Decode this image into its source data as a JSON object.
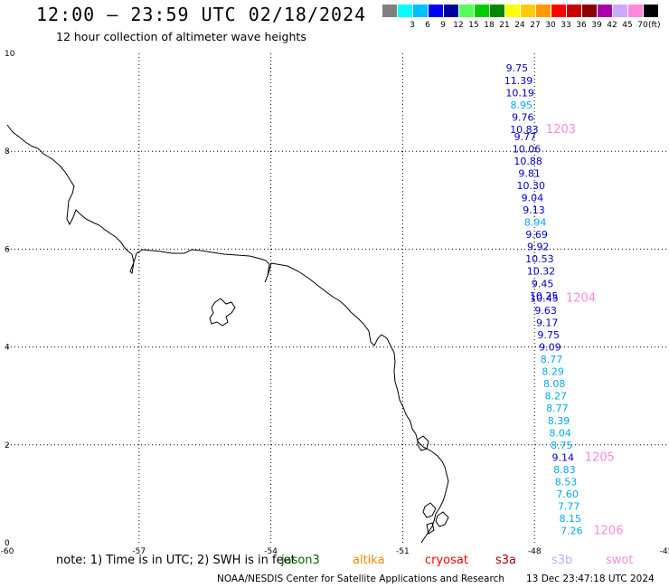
{
  "header": {
    "title": "12:00 – 23:59 UTC 02/18/2024",
    "subtitle": "12 hour collection of altimeter wave heights"
  },
  "colorbar": {
    "unit": "(ft)",
    "items": [
      {
        "label": "",
        "color": "#808080"
      },
      {
        "label": "3",
        "color": "#00ffff"
      },
      {
        "label": "6",
        "color": "#00bfff"
      },
      {
        "label": "9",
        "color": "#0000ff"
      },
      {
        "label": "12",
        "color": "#00009f"
      },
      {
        "label": "15",
        "color": "#55ff55"
      },
      {
        "label": "18",
        "color": "#00cc00"
      },
      {
        "label": "21",
        "color": "#008800"
      },
      {
        "label": "24",
        "color": "#ffff00"
      },
      {
        "label": "27",
        "color": "#ffcc00"
      },
      {
        "label": "30",
        "color": "#ff9900"
      },
      {
        "label": "33",
        "color": "#ff0000"
      },
      {
        "label": "36",
        "color": "#cc0000"
      },
      {
        "label": "39",
        "color": "#880000"
      },
      {
        "label": "42",
        "color": "#aa00aa"
      },
      {
        "label": "45",
        "color": "#ccaaff"
      },
      {
        "label": "70",
        "color": "#ff88dd"
      },
      {
        "label": "",
        "color": "#000000"
      }
    ]
  },
  "map": {
    "lon_range": [
      -60,
      -45
    ],
    "lat_range": [
      0,
      10
    ],
    "lon_ticks": [
      "-60",
      "-57",
      "-54",
      "-51",
      "-48",
      "-45"
    ],
    "lat_ticks": [
      "10",
      "8",
      "6",
      "4",
      "2",
      "0"
    ],
    "observations": [
      {
        "lat": 9.7,
        "value": "9.75",
        "color": "#0000cc"
      },
      {
        "lat": 9.45,
        "value": "11.39",
        "color": "#0000cc"
      },
      {
        "lat": 9.2,
        "value": "10.19",
        "color": "#0000cc"
      },
      {
        "lat": 8.95,
        "value": "8.95",
        "color": "#00aaee"
      },
      {
        "lat": 8.7,
        "value": "9.76",
        "color": "#0000cc"
      },
      {
        "lat": 8.45,
        "value": "10.83",
        "color": "#0000cc"
      },
      {
        "lat": 8.3,
        "value": "9.77",
        "color": "#0000cc"
      },
      {
        "lat": 8.05,
        "value": "10.06",
        "color": "#0000cc"
      },
      {
        "lat": 7.8,
        "value": "10.88",
        "color": "#0000cc"
      },
      {
        "lat": 7.55,
        "value": "9.81",
        "color": "#0000cc"
      },
      {
        "lat": 7.3,
        "value": "10.30",
        "color": "#0000cc"
      },
      {
        "lat": 7.05,
        "value": "9.04",
        "color": "#0000cc"
      },
      {
        "lat": 6.8,
        "value": "9.13",
        "color": "#0000cc"
      },
      {
        "lat": 6.55,
        "value": "8.94",
        "color": "#00aaee"
      },
      {
        "lat": 6.3,
        "value": "9.69",
        "color": "#0000cc"
      },
      {
        "lat": 6.05,
        "value": "9.92",
        "color": "#0000cc"
      },
      {
        "lat": 5.8,
        "value": "10.53",
        "color": "#0000cc"
      },
      {
        "lat": 5.55,
        "value": "10.32",
        "color": "#0000cc"
      },
      {
        "lat": 5.3,
        "value": "9.45",
        "color": "#0000cc"
      },
      {
        "lat": 5.05,
        "value": "10.25",
        "color": "#0000cc"
      },
      {
        "lat": 5.0,
        "value": "10.45",
        "color": "#0000cc"
      },
      {
        "lat": 4.75,
        "value": "9.63",
        "color": "#0000cc"
      },
      {
        "lat": 4.5,
        "value": "9.17",
        "color": "#0000cc"
      },
      {
        "lat": 4.25,
        "value": "9.75",
        "color": "#0000cc"
      },
      {
        "lat": 4.0,
        "value": "9.09",
        "color": "#0000cc"
      },
      {
        "lat": 3.75,
        "value": "8.77",
        "color": "#00aaee"
      },
      {
        "lat": 3.5,
        "value": "8.29",
        "color": "#00aaee"
      },
      {
        "lat": 3.25,
        "value": "8.08",
        "color": "#00aaee"
      },
      {
        "lat": 3.0,
        "value": "8.27",
        "color": "#00aaee"
      },
      {
        "lat": 2.75,
        "value": "8.77",
        "color": "#00aaee"
      },
      {
        "lat": 2.5,
        "value": "8.39",
        "color": "#00aaee"
      },
      {
        "lat": 2.25,
        "value": "8.04",
        "color": "#00aaee"
      },
      {
        "lat": 2.0,
        "value": "8.75",
        "color": "#00aaee"
      },
      {
        "lat": 1.75,
        "value": "9.14",
        "color": "#0000cc"
      },
      {
        "lat": 1.5,
        "value": "8.83",
        "color": "#00aaee"
      },
      {
        "lat": 1.25,
        "value": "8.53",
        "color": "#00aaee"
      },
      {
        "lat": 1.0,
        "value": "7.60",
        "color": "#00aaee"
      },
      {
        "lat": 0.75,
        "value": "7.77",
        "color": "#00aaee"
      },
      {
        "lat": 0.5,
        "value": "8.15",
        "color": "#00aaee"
      },
      {
        "lat": 0.25,
        "value": "7.26",
        "color": "#00aaee"
      }
    ],
    "times": [
      {
        "lat": 8.45,
        "label": "1203"
      },
      {
        "lat": 5.0,
        "label": "1204"
      },
      {
        "lat": 1.75,
        "label": "1205"
      },
      {
        "lat": 0.25,
        "label": "1206"
      }
    ],
    "time_color": "#ff88dd"
  },
  "footer": {
    "note": "note:  1) Time is in UTC; 2) SWH is in feet",
    "satellites": [
      {
        "name": "jason3",
        "color": "#006600"
      },
      {
        "name": "altika",
        "color": "#ff8800"
      },
      {
        "name": "cryosat",
        "color": "#ff0000"
      },
      {
        "name": "s3a",
        "color": "#aa0000"
      },
      {
        "name": "s3b",
        "color": "#ccaaff"
      },
      {
        "name": "swot",
        "color": "#ff88dd"
      }
    ],
    "credit": "NOAA/NESDIS Center for Satellite Applications and Research",
    "datestamp": "13 Dec 23:47:18 UTC 2024"
  }
}
